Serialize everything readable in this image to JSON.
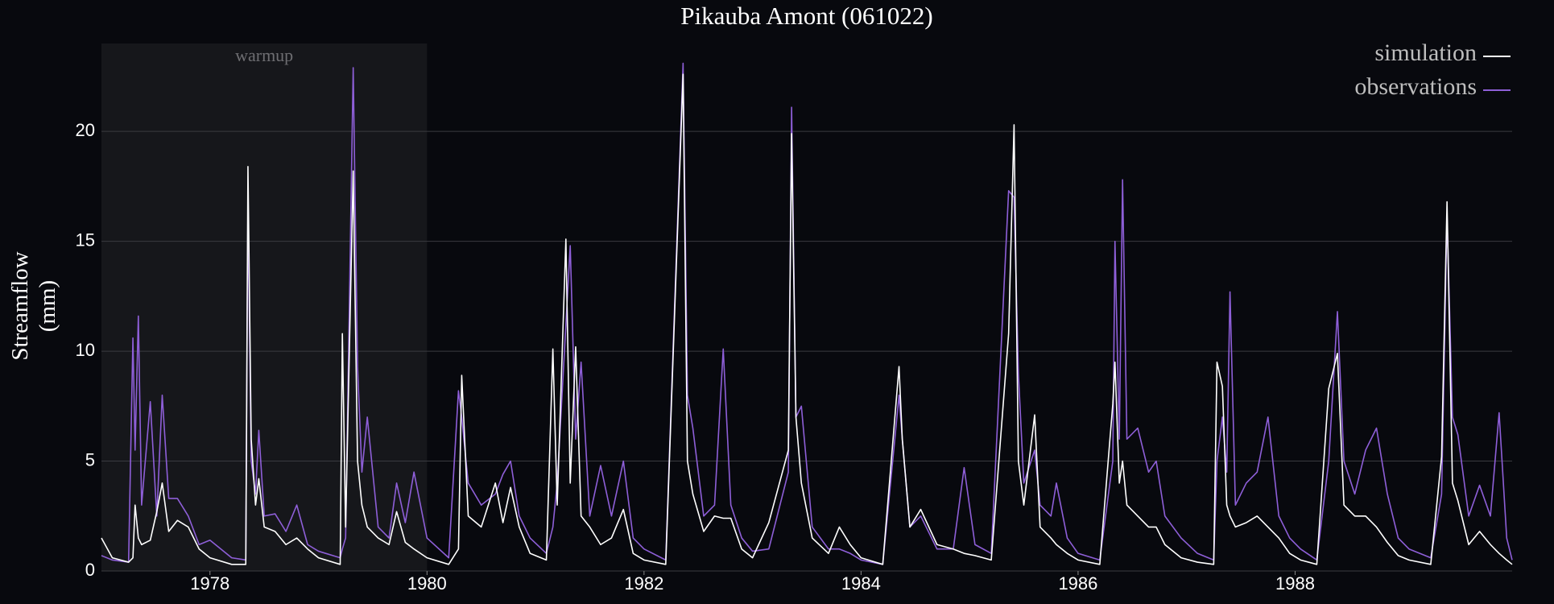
{
  "chart_data": {
    "type": "line",
    "title": "Pikauba Amont (061022)",
    "y_label": "Streamflow (mm)",
    "warmup": {
      "label": "warmup",
      "range": [
        1977,
        1980
      ]
    },
    "xlim": [
      1977,
      1990
    ],
    "xticks": [
      1978,
      1980,
      1982,
      1984,
      1986,
      1988
    ],
    "ylim": [
      0,
      24
    ],
    "yticks": [
      0,
      5,
      10,
      15,
      20
    ],
    "grid": true,
    "legend": "upper right",
    "x": [
      1977.0,
      1977.1,
      1977.25,
      1977.29,
      1977.31,
      1977.34,
      1977.37,
      1977.45,
      1977.51,
      1977.56,
      1977.62,
      1977.7,
      1977.8,
      1977.9,
      1978.0,
      1978.2,
      1978.33,
      1978.35,
      1978.38,
      1978.42,
      1978.45,
      1978.5,
      1978.6,
      1978.7,
      1978.8,
      1978.9,
      1979.0,
      1979.2,
      1979.22,
      1979.25,
      1979.32,
      1979.36,
      1979.4,
      1979.45,
      1979.55,
      1979.65,
      1979.72,
      1979.8,
      1979.88,
      1980.0,
      1980.2,
      1980.29,
      1980.32,
      1980.38,
      1980.5,
      1980.63,
      1980.7,
      1980.77,
      1980.85,
      1980.95,
      1981.1,
      1981.16,
      1981.2,
      1981.28,
      1981.32,
      1981.37,
      1981.42,
      1981.5,
      1981.6,
      1981.7,
      1981.81,
      1981.9,
      1982.0,
      1982.2,
      1982.36,
      1982.4,
      1982.45,
      1982.55,
      1982.65,
      1982.73,
      1982.8,
      1982.9,
      1983.0,
      1983.15,
      1983.33,
      1983.36,
      1983.4,
      1983.45,
      1983.55,
      1983.7,
      1983.8,
      1983.9,
      1984.0,
      1984.2,
      1984.35,
      1984.38,
      1984.45,
      1984.55,
      1984.7,
      1984.85,
      1984.95,
      1985.05,
      1985.2,
      1985.36,
      1985.41,
      1985.45,
      1985.5,
      1985.6,
      1985.65,
      1985.75,
      1985.8,
      1985.9,
      1986.0,
      1986.2,
      1986.32,
      1986.34,
      1986.38,
      1986.41,
      1986.45,
      1986.55,
      1986.65,
      1986.72,
      1986.8,
      1986.95,
      1987.1,
      1987.25,
      1987.28,
      1987.33,
      1987.37,
      1987.4,
      1987.45,
      1987.55,
      1987.65,
      1987.75,
      1987.85,
      1987.95,
      1988.05,
      1988.2,
      1988.31,
      1988.39,
      1988.45,
      1988.55,
      1988.65,
      1988.75,
      1988.85,
      1988.95,
      1989.05,
      1989.25,
      1989.35,
      1989.4,
      1989.45,
      1989.5,
      1989.6,
      1989.7,
      1989.8,
      1989.88,
      1989.95,
      1990.0
    ],
    "series": [
      {
        "name": "simulation",
        "color": "#ffffff",
        "values": [
          1.5,
          0.6,
          0.4,
          0.6,
          3.0,
          1.5,
          1.2,
          1.4,
          2.7,
          4.0,
          1.8,
          2.3,
          2.0,
          1.0,
          0.6,
          0.3,
          0.3,
          18.4,
          6.0,
          3.0,
          4.2,
          2.0,
          1.8,
          1.2,
          1.5,
          1.0,
          0.6,
          0.3,
          10.8,
          2.0,
          18.2,
          5.0,
          3.0,
          2.0,
          1.5,
          1.2,
          2.7,
          1.3,
          1.0,
          0.6,
          0.3,
          1.0,
          8.9,
          2.5,
          2.0,
          4.0,
          2.2,
          3.8,
          2.0,
          0.8,
          0.5,
          10.1,
          3.0,
          15.1,
          4.0,
          10.2,
          2.5,
          2.0,
          1.2,
          1.5,
          2.8,
          0.8,
          0.5,
          0.3,
          22.6,
          5.0,
          3.5,
          1.8,
          2.5,
          2.4,
          2.4,
          1.0,
          0.6,
          2.2,
          5.5,
          19.9,
          7.0,
          4.0,
          1.5,
          0.8,
          2.0,
          1.2,
          0.6,
          0.3,
          9.3,
          6.0,
          2.0,
          2.8,
          1.2,
          1.0,
          0.8,
          0.7,
          0.5,
          10.8,
          20.3,
          5.0,
          3.0,
          7.1,
          2.0,
          1.5,
          1.2,
          0.8,
          0.5,
          0.3,
          7.6,
          9.5,
          4.0,
          5.0,
          3.0,
          2.5,
          2.0,
          2.0,
          1.2,
          0.6,
          0.4,
          0.3,
          9.5,
          8.4,
          3.0,
          2.5,
          2.0,
          2.2,
          2.5,
          2.0,
          1.5,
          0.8,
          0.5,
          0.3,
          8.3,
          9.9,
          3.0,
          2.5,
          2.5,
          2.0,
          1.3,
          0.7,
          0.5,
          0.3,
          5.2,
          16.8,
          4.0,
          3.2,
          1.2,
          1.8,
          1.2,
          0.8,
          0.5,
          0.3
        ]
      },
      {
        "name": "observations",
        "color": "#8e5fd8",
        "values": [
          0.7,
          0.5,
          0.4,
          10.6,
          5.5,
          11.6,
          3.0,
          7.7,
          2.5,
          8.0,
          3.3,
          3.3,
          2.5,
          1.2,
          1.4,
          0.6,
          0.5,
          16.7,
          5.0,
          3.5,
          6.4,
          2.5,
          2.6,
          1.8,
          3.0,
          1.2,
          0.9,
          0.6,
          1.0,
          1.5,
          22.9,
          9.3,
          4.5,
          7.0,
          2.0,
          1.5,
          4.0,
          2.2,
          4.5,
          1.5,
          0.6,
          8.2,
          7.0,
          4.0,
          3.0,
          3.5,
          4.4,
          5.0,
          2.5,
          1.5,
          0.8,
          2.0,
          4.0,
          11.2,
          14.8,
          6.0,
          9.5,
          2.5,
          4.8,
          2.5,
          5.0,
          1.5,
          1.0,
          0.5,
          23.1,
          8.0,
          6.5,
          2.5,
          3.0,
          10.1,
          3.0,
          1.5,
          0.9,
          1.0,
          4.5,
          21.1,
          7.0,
          7.5,
          2.0,
          1.0,
          1.0,
          0.8,
          0.5,
          0.3,
          8.0,
          6.0,
          2.0,
          2.5,
          1.0,
          1.0,
          4.7,
          1.2,
          0.8,
          17.3,
          17.0,
          9.0,
          4.0,
          5.5,
          3.0,
          2.5,
          4.0,
          1.5,
          0.8,
          0.5,
          5.0,
          15.0,
          6.0,
          17.8,
          6.0,
          6.5,
          4.5,
          5.0,
          2.5,
          1.5,
          0.8,
          0.5,
          5.0,
          7.0,
          4.5,
          12.7,
          3.0,
          4.0,
          4.5,
          7.0,
          2.5,
          1.5,
          1.0,
          0.5,
          5.0,
          11.8,
          5.0,
          3.5,
          5.5,
          6.5,
          3.5,
          1.5,
          1.0,
          0.6,
          3.5,
          16.2,
          7.0,
          6.2,
          2.5,
          3.9,
          2.5,
          7.2,
          1.5,
          0.5
        ]
      }
    ]
  }
}
